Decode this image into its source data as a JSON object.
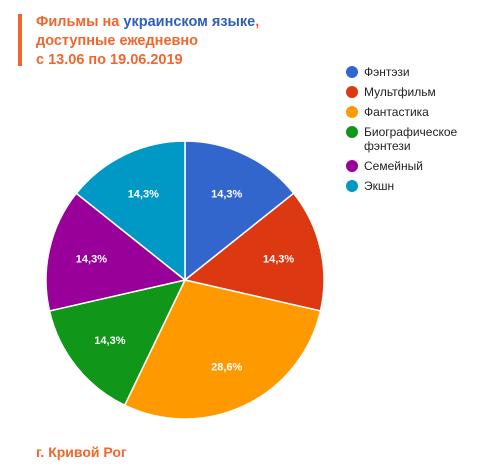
{
  "title": {
    "part1": "Фильмы на ",
    "highlight": "украинском языке",
    "part2": ",",
    "line2": "доступные ежедневно",
    "line3": "с 13.06 по 19.06.2019"
  },
  "footer": "г. Кривой Рог",
  "colors": {
    "accent": "#f0662d",
    "highlight": "#2f5fb4"
  },
  "chart_data": {
    "type": "pie",
    "categories": [
      "Фэнтэзи",
      "Мультфильм",
      "Фантастика",
      "Биографическое фэнтези",
      "Семейный",
      "Экшн"
    ],
    "legend_lines": [
      [
        "Фэнтэзи"
      ],
      [
        "Мультфильм"
      ],
      [
        "Фантастика"
      ],
      [
        "Биографическое",
        "фэнтези"
      ],
      [
        "Семейный"
      ],
      [
        "Экшн"
      ]
    ],
    "values": [
      14.3,
      14.3,
      28.6,
      14.3,
      14.3,
      14.3
    ],
    "labels": [
      "14,3%",
      "14,3%",
      "28,6%",
      "14,3%",
      "14,3%",
      "14,3%"
    ],
    "colors": [
      "#3366cc",
      "#dc3912",
      "#ff9900",
      "#109618",
      "#990099",
      "#0099c6"
    ],
    "legend_position": "right"
  }
}
